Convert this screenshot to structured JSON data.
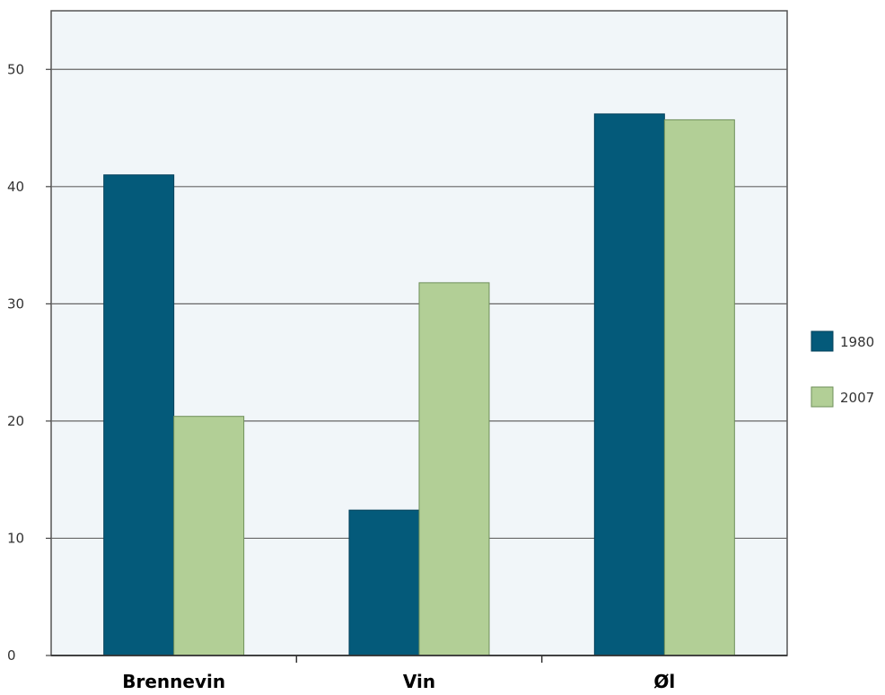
{
  "chart_data": {
    "type": "bar",
    "title": "",
    "xlabel": "",
    "ylabel": "",
    "categories": [
      "Brennevin",
      "Vin",
      "Øl"
    ],
    "series": [
      {
        "name": "1980",
        "color": "#045a7a",
        "values": [
          41,
          12.4,
          46.2
        ]
      },
      {
        "name": "2007",
        "color": "#b2cf96",
        "values": [
          20.4,
          31.8,
          45.7
        ]
      }
    ],
    "ylim": [
      0,
      55
    ],
    "yticks": [
      0,
      10,
      20,
      30,
      40,
      50
    ],
    "grid": true,
    "legend_position": "right",
    "plot_background": "#f1f6f9"
  }
}
